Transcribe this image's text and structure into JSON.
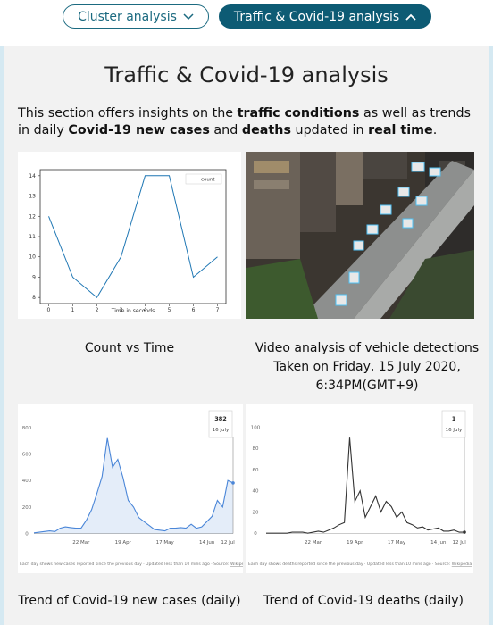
{
  "nav": {
    "buttons": [
      "Cluster analysis",
      "Traffic & Covid-19 analysis"
    ]
  },
  "section": {
    "title": "Traffic & Covid-19 analysis",
    "intro": [
      {
        "text": "This section offers insights on the "
      },
      {
        "text": "traffic conditions",
        "bold": true
      },
      {
        "text": " as well as trends in daily "
      },
      {
        "text": "Covid-19 new cases",
        "bold": true
      },
      {
        "text": " and "
      },
      {
        "text": "deaths",
        "bold": true
      },
      {
        "text": " updated in "
      },
      {
        "text": "real time",
        "bold": true
      },
      {
        "text": "."
      }
    ]
  },
  "captions": {
    "count": "Count vs Time",
    "video": [
      "Video analysis of vehicle detections",
      "Taken on Friday, 15 July 2020,",
      "6:34PM(GMT+9)"
    ],
    "cases": "Trend of Covid-19 new cases (daily)",
    "deaths": "Trend of Covid-19 deaths (daily)"
  },
  "chart_data": [
    {
      "type": "line",
      "x": [
        0,
        1,
        2,
        3,
        4,
        5,
        6,
        7
      ],
      "series": [
        {
          "name": "count",
          "color": "#1f77b4",
          "values": [
            12,
            9,
            8,
            10,
            14,
            14,
            9,
            10
          ]
        }
      ],
      "xlabel": "Time in seconds",
      "xlim": [
        -0.35,
        7.35
      ],
      "xticks": [
        0,
        1,
        2,
        3,
        4,
        5,
        6,
        7
      ],
      "ylim": [
        7.7,
        14.3
      ],
      "yticks": [
        8,
        9,
        10,
        11,
        12,
        13,
        14
      ],
      "legend": "upper right",
      "frame": true
    },
    {
      "type": "line",
      "categories": [
        null,
        null,
        null,
        null,
        null,
        null,
        null,
        null,
        null,
        "22 Mar",
        null,
        null,
        null,
        null,
        null,
        null,
        null,
        "19 Apr",
        null,
        null,
        null,
        null,
        null,
        null,
        null,
        "17 May",
        null,
        null,
        null,
        null,
        null,
        null,
        null,
        "14 Jun",
        null,
        null,
        null,
        "12 Jul",
        null
      ],
      "values": [
        5,
        10,
        15,
        20,
        15,
        40,
        50,
        45,
        40,
        40,
        100,
        180,
        300,
        430,
        720,
        500,
        560,
        420,
        250,
        200,
        120,
        90,
        60,
        30,
        25,
        20,
        40,
        40,
        45,
        40,
        70,
        40,
        50,
        90,
        130,
        250,
        200,
        400,
        382
      ],
      "color": "#4a86d8",
      "area": true,
      "ylim": [
        -30,
        900
      ],
      "yticks": [
        0,
        200,
        400,
        600,
        800
      ],
      "tooltip": {
        "date": "16 July"
      },
      "footnote": "Each day shows new cases reported since the previous day · Updated less than 10 mins ago · Source: ",
      "source": "Wikipedia"
    },
    {
      "type": "line",
      "categories": [
        null,
        null,
        null,
        null,
        null,
        null,
        null,
        null,
        null,
        "22 Mar",
        null,
        null,
        null,
        null,
        null,
        null,
        null,
        "19 Apr",
        null,
        null,
        null,
        null,
        null,
        null,
        null,
        "17 May",
        null,
        null,
        null,
        null,
        null,
        null,
        null,
        "14 Jun",
        null,
        null,
        null,
        "12 Jul",
        null
      ],
      "values": [
        0,
        0,
        0,
        0,
        0,
        1,
        1,
        1,
        0,
        1,
        2,
        1,
        3,
        5,
        8,
        10,
        90,
        30,
        40,
        15,
        25,
        35,
        20,
        30,
        25,
        15,
        20,
        10,
        8,
        5,
        6,
        3,
        4,
        5,
        2,
        2,
        3,
        1,
        1
      ],
      "color": "#333333",
      "area": false,
      "ylim": [
        -4,
        112
      ],
      "yticks": [
        0,
        20,
        40,
        60,
        80,
        100
      ],
      "tooltip": {
        "date": "16 July"
      },
      "footnote": "Each day shows deaths reported since the previous day · Updated less than 10 mins ago · Source: ",
      "source": "Wikipedia"
    }
  ]
}
